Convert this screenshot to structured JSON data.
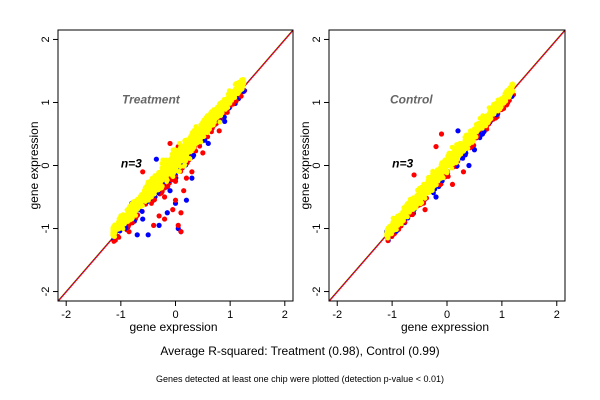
{
  "chart_data": [
    {
      "type": "scatter",
      "title": "Treatment",
      "annotation": "n=3",
      "xlabel": "gene expression",
      "ylabel": "gene expression",
      "xlim": [
        -2.15,
        2.15
      ],
      "ylim": [
        -2.15,
        2.15
      ],
      "xticks": [
        -2,
        -1,
        0,
        1,
        2
      ],
      "yticks": [
        -2,
        -1,
        0,
        1,
        2
      ],
      "grid": false,
      "reference_lines": [
        {
          "slope": 1,
          "intercept": 0,
          "colors": [
            "#ff0000",
            "#0000ff",
            "#ffff00"
          ]
        }
      ],
      "series": [
        {
          "color": "#0000ff",
          "points": [
            [
              -0.5,
              -1.1
            ],
            [
              -0.3,
              -0.95
            ],
            [
              -0.6,
              -0.85
            ],
            [
              0.05,
              -1.0
            ],
            [
              0.1,
              -1.05
            ],
            [
              -0.15,
              -0.75
            ],
            [
              0.0,
              -0.6
            ],
            [
              0.2,
              -0.55
            ],
            [
              0.3,
              -0.2
            ],
            [
              0.6,
              0.35
            ],
            [
              0.9,
              0.7
            ],
            [
              -0.35,
              0.1
            ],
            [
              -0.1,
              -0.4
            ],
            [
              -0.8,
              -0.6
            ],
            [
              -0.7,
              -1.1
            ]
          ]
        },
        {
          "color": "#ff0000",
          "points": [
            [
              0.05,
              -0.95
            ],
            [
              0.1,
              -1.05
            ],
            [
              0.1,
              -0.75
            ],
            [
              -0.2,
              -0.85
            ],
            [
              -0.05,
              -0.7
            ],
            [
              -0.3,
              -0.8
            ],
            [
              -0.4,
              -0.95
            ],
            [
              0.0,
              -0.55
            ],
            [
              0.15,
              -0.4
            ],
            [
              0.2,
              -0.2
            ],
            [
              0.3,
              -0.1
            ],
            [
              -0.1,
              0.35
            ],
            [
              0.05,
              0.3
            ],
            [
              -0.6,
              -0.1
            ],
            [
              -0.5,
              -0.3
            ],
            [
              -0.85,
              -1.05
            ],
            [
              0.5,
              0.2
            ],
            [
              0.8,
              0.55
            ],
            [
              1.2,
              1.1
            ],
            [
              -0.2,
              -0.5
            ],
            [
              0.0,
              -0.25
            ]
          ]
        },
        {
          "color": "#ffff00",
          "cloud": {
            "x_range": [
              -1.15,
              1.25
            ],
            "y_offset": 0.08,
            "spread": 0.17
          }
        }
      ]
    },
    {
      "type": "scatter",
      "title": "Control",
      "annotation": "n=3",
      "xlabel": "gene expression",
      "ylabel": "gene expression",
      "xlim": [
        -2.15,
        2.15
      ],
      "ylim": [
        -2.15,
        2.15
      ],
      "xticks": [
        -2,
        -1,
        0,
        1,
        2
      ],
      "yticks": [
        -2,
        -1,
        0,
        1,
        2
      ],
      "grid": false,
      "reference_lines": [
        {
          "slope": 1,
          "intercept": 0,
          "colors": [
            "#ff0000",
            "#0000ff",
            "#ffff00"
          ]
        }
      ],
      "series": [
        {
          "color": "#0000ff",
          "points": [
            [
              0.2,
              0.55
            ],
            [
              -1.1,
              -1.05
            ],
            [
              -0.6,
              -0.7
            ],
            [
              0.4,
              0.0
            ],
            [
              0.5,
              0.25
            ],
            [
              -0.2,
              -0.5
            ]
          ]
        },
        {
          "color": "#ff0000",
          "points": [
            [
              -0.1,
              0.5
            ],
            [
              0.35,
              0.45
            ],
            [
              0.2,
              0.2
            ],
            [
              0.3,
              -0.1
            ],
            [
              -0.6,
              -0.15
            ],
            [
              -0.2,
              0.3
            ],
            [
              0.45,
              0.3
            ],
            [
              0.55,
              0.6
            ],
            [
              -1.05,
              -1.1
            ],
            [
              -0.8,
              -0.9
            ],
            [
              0.1,
              -0.3
            ],
            [
              0.8,
              0.75
            ],
            [
              -0.4,
              -0.7
            ]
          ]
        },
        {
          "color": "#ffff00",
          "cloud": {
            "x_range": [
              -1.1,
              1.2
            ],
            "y_offset": 0.02,
            "spread": 0.13
          }
        }
      ]
    }
  ],
  "caption": "Average R-squared: Treatment (0.98), Control (0.99)",
  "footnote": "Genes detected at least one chip were plotted (detection p-value < 0.01)"
}
